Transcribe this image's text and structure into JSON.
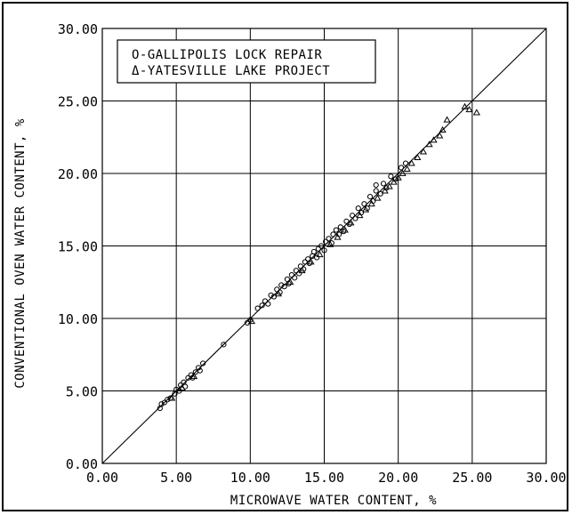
{
  "chart_data": {
    "type": "scatter",
    "xlabel": "MICROWAVE WATER CONTENT, %",
    "ylabel": "CONVENTIONAL OVEN WATER CONTENT, %",
    "xlim": [
      0,
      30
    ],
    "ylim": [
      0,
      30
    ],
    "x_ticks": [
      "0.00",
      "5.00",
      "10.00",
      "15.00",
      "20.00",
      "25.00",
      "30.00"
    ],
    "y_ticks": [
      "0.00",
      "5.00",
      "10.00",
      "15.00",
      "20.00",
      "25.00",
      "30.00"
    ],
    "grid": true,
    "legend_position": "top-left",
    "reference_line": {
      "x": [
        0,
        30
      ],
      "y": [
        0,
        30
      ]
    },
    "series": [
      {
        "name": "O-GALLIPOLIS LOCK REPAIR",
        "marker": "circle",
        "points": [
          [
            3.9,
            3.8
          ],
          [
            4.0,
            4.1
          ],
          [
            4.2,
            4.2
          ],
          [
            4.4,
            4.4
          ],
          [
            4.6,
            4.5
          ],
          [
            4.9,
            4.8
          ],
          [
            5.0,
            5.1
          ],
          [
            5.2,
            5.0
          ],
          [
            5.3,
            5.4
          ],
          [
            5.5,
            5.6
          ],
          [
            5.6,
            5.3
          ],
          [
            5.8,
            5.9
          ],
          [
            6.0,
            6.1
          ],
          [
            6.1,
            5.9
          ],
          [
            6.3,
            6.3
          ],
          [
            6.5,
            6.6
          ],
          [
            6.6,
            6.4
          ],
          [
            6.8,
            6.9
          ],
          [
            8.2,
            8.2
          ],
          [
            9.8,
            9.7
          ],
          [
            10.0,
            9.9
          ],
          [
            10.5,
            10.7
          ],
          [
            10.8,
            10.9
          ],
          [
            11.0,
            11.2
          ],
          [
            11.2,
            11.0
          ],
          [
            11.4,
            11.6
          ],
          [
            11.6,
            11.5
          ],
          [
            11.8,
            12.0
          ],
          [
            12.0,
            11.8
          ],
          [
            12.1,
            12.3
          ],
          [
            12.3,
            12.2
          ],
          [
            12.5,
            12.7
          ],
          [
            12.6,
            12.4
          ],
          [
            12.8,
            13.0
          ],
          [
            13.0,
            12.8
          ],
          [
            13.1,
            13.3
          ],
          [
            13.3,
            13.1
          ],
          [
            13.4,
            13.6
          ],
          [
            13.6,
            13.4
          ],
          [
            13.7,
            13.9
          ],
          [
            13.9,
            14.1
          ],
          [
            14.0,
            13.8
          ],
          [
            14.2,
            14.3
          ],
          [
            14.3,
            14.6
          ],
          [
            14.5,
            14.2
          ],
          [
            14.6,
            14.8
          ],
          [
            14.8,
            15.0
          ],
          [
            15.0,
            14.7
          ],
          [
            15.1,
            15.3
          ],
          [
            15.3,
            15.5
          ],
          [
            15.5,
            15.2
          ],
          [
            15.6,
            15.8
          ],
          [
            15.8,
            16.1
          ],
          [
            16.0,
            15.8
          ],
          [
            16.1,
            16.3
          ],
          [
            16.3,
            16.0
          ],
          [
            16.5,
            16.7
          ],
          [
            16.7,
            16.5
          ],
          [
            16.9,
            17.1
          ],
          [
            17.1,
            16.9
          ],
          [
            17.3,
            17.6
          ],
          [
            17.5,
            17.3
          ],
          [
            17.7,
            17.9
          ],
          [
            17.9,
            17.6
          ],
          [
            18.1,
            18.4
          ],
          [
            18.3,
            18.1
          ],
          [
            18.5,
            18.8
          ],
          [
            18.5,
            19.2
          ],
          [
            18.8,
            18.6
          ],
          [
            19.0,
            19.3
          ],
          [
            19.2,
            19.0
          ],
          [
            19.5,
            19.8
          ],
          [
            19.8,
            19.6
          ],
          [
            20.2,
            20.4
          ],
          [
            20.5,
            20.7
          ]
        ]
      },
      {
        "name": "Δ-YATESVILLE LAKE PROJECT",
        "marker": "triangle",
        "points": [
          [
            4.7,
            4.5
          ],
          [
            5.4,
            5.2
          ],
          [
            6.2,
            6.0
          ],
          [
            10.1,
            9.8
          ],
          [
            11.9,
            11.7
          ],
          [
            12.7,
            12.5
          ],
          [
            13.5,
            13.3
          ],
          [
            14.1,
            13.9
          ],
          [
            14.7,
            14.4
          ],
          [
            15.4,
            15.1
          ],
          [
            15.9,
            15.6
          ],
          [
            16.4,
            16.1
          ],
          [
            16.8,
            16.6
          ],
          [
            17.4,
            17.1
          ],
          [
            17.8,
            17.5
          ],
          [
            18.2,
            17.9
          ],
          [
            18.6,
            18.3
          ],
          [
            19.1,
            18.8
          ],
          [
            19.4,
            19.1
          ],
          [
            19.7,
            19.4
          ],
          [
            20.0,
            19.7
          ],
          [
            20.3,
            20.0
          ],
          [
            20.6,
            20.3
          ],
          [
            20.9,
            20.7
          ],
          [
            21.3,
            21.1
          ],
          [
            21.7,
            21.5
          ],
          [
            22.1,
            22.0
          ],
          [
            22.4,
            22.3
          ],
          [
            22.8,
            22.6
          ],
          [
            23.3,
            23.7
          ],
          [
            23.0,
            23.0
          ],
          [
            24.5,
            24.6
          ],
          [
            24.8,
            24.4
          ],
          [
            25.3,
            24.2
          ]
        ]
      }
    ]
  }
}
